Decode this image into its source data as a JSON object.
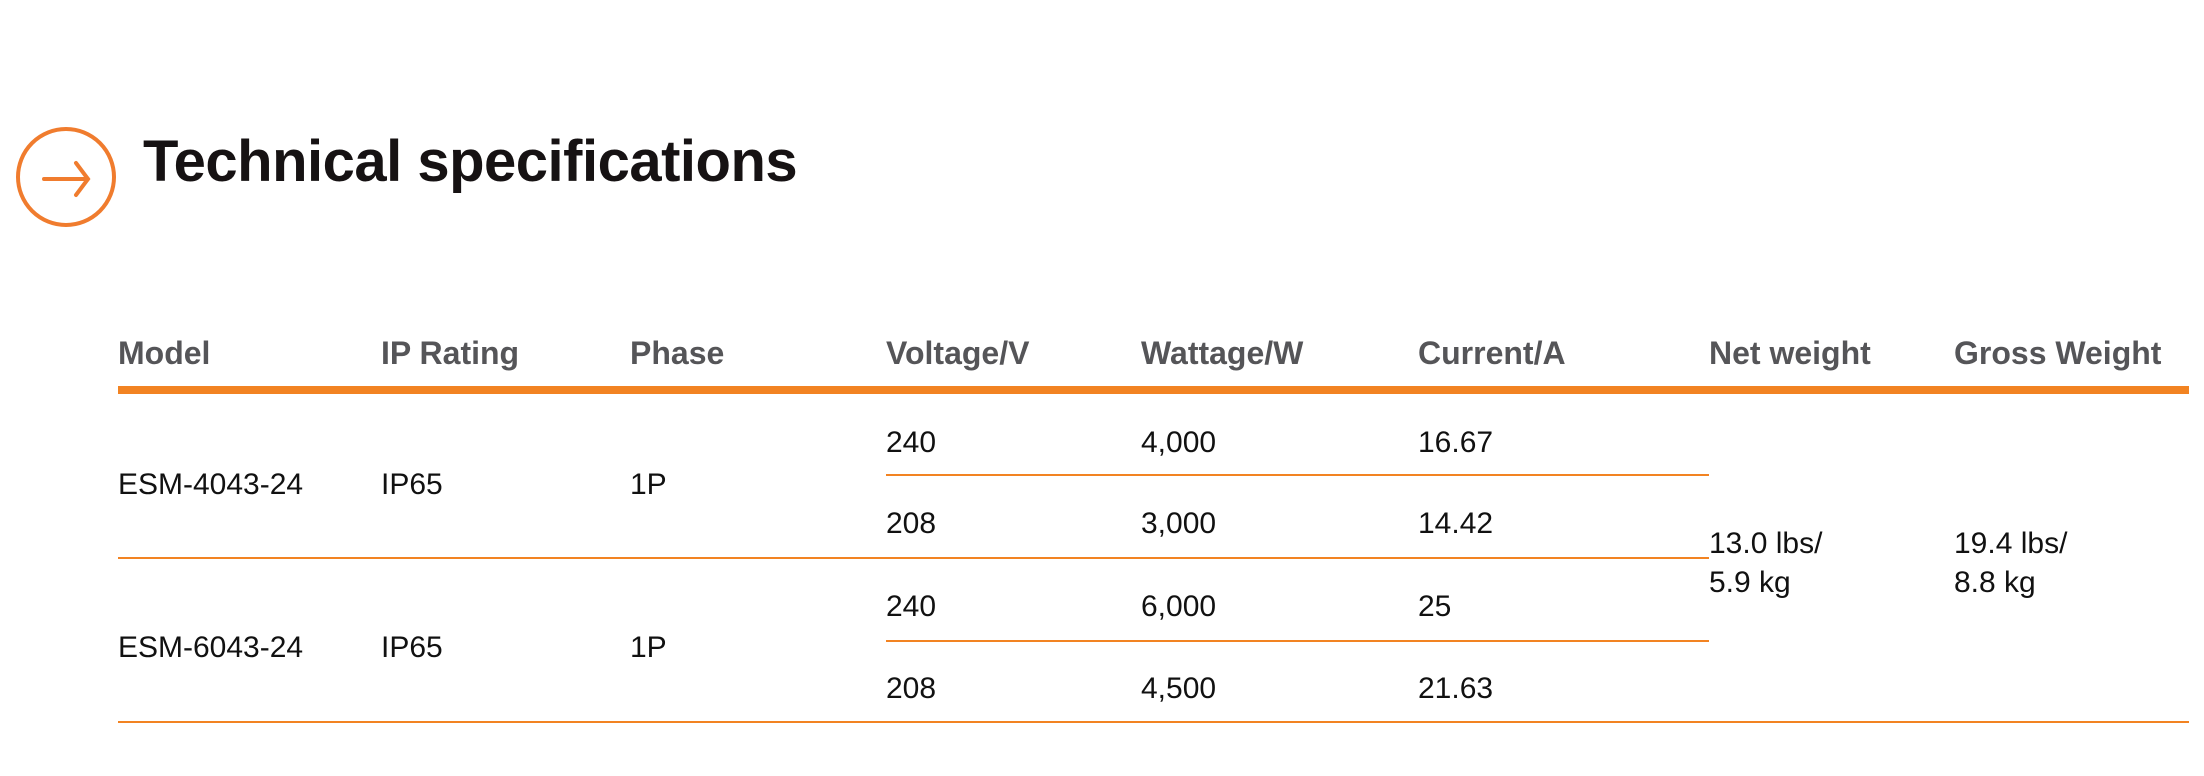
{
  "title": "Technical specifications",
  "icon": "arrow-right-circle-icon",
  "accent_color": "#f28322",
  "table": {
    "headers": [
      "Model",
      "IP Rating",
      "Phase",
      "Voltage/V",
      "Wattage/W",
      "Current/A",
      "Net weight",
      "Gross Weight"
    ],
    "models": [
      {
        "model": "ESM-4043-24",
        "ip": "IP65",
        "phase": "1P",
        "rows": [
          {
            "voltage": "240",
            "wattage": "4,000",
            "current": "16.67"
          },
          {
            "voltage": "208",
            "wattage": "3,000",
            "current": "14.42"
          }
        ]
      },
      {
        "model": "ESM-6043-24",
        "ip": "IP65",
        "phase": "1P",
        "rows": [
          {
            "voltage": "240",
            "wattage": "6,000",
            "current": "25"
          },
          {
            "voltage": "208",
            "wattage": "4,500",
            "current": "21.63"
          }
        ]
      }
    ],
    "net_weight": [
      "13.0 lbs/",
      "5.9 kg"
    ],
    "gross_weight": [
      "19.4 lbs/",
      "8.8 kg"
    ]
  }
}
